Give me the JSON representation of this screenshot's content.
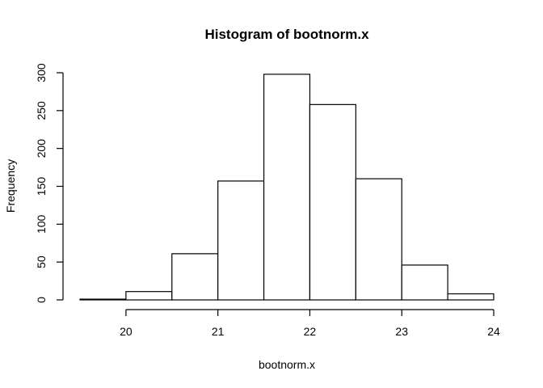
{
  "chart_data": {
    "type": "bar",
    "title": "Histogram of bootnorm.x",
    "xlabel": "bootnorm.x",
    "ylabel": "Frequency",
    "bins": [
      {
        "start": 19.5,
        "end": 20.0,
        "count": 1
      },
      {
        "start": 20.0,
        "end": 20.5,
        "count": 11
      },
      {
        "start": 20.5,
        "end": 21.0,
        "count": 61
      },
      {
        "start": 21.0,
        "end": 21.5,
        "count": 157
      },
      {
        "start": 21.5,
        "end": 22.0,
        "count": 298
      },
      {
        "start": 22.0,
        "end": 22.5,
        "count": 258
      },
      {
        "start": 22.5,
        "end": 23.0,
        "count": 160
      },
      {
        "start": 23.0,
        "end": 23.5,
        "count": 46
      },
      {
        "start": 23.5,
        "end": 24.0,
        "count": 8
      }
    ],
    "xlim": [
      19.5,
      24.0
    ],
    "ylim": [
      0,
      300
    ],
    "x_ticks": [
      20,
      21,
      22,
      23,
      24
    ],
    "y_ticks": [
      0,
      50,
      100,
      150,
      200,
      250,
      300
    ],
    "grid": false,
    "bar_fill": "#ffffff",
    "bar_stroke": "#000000"
  }
}
